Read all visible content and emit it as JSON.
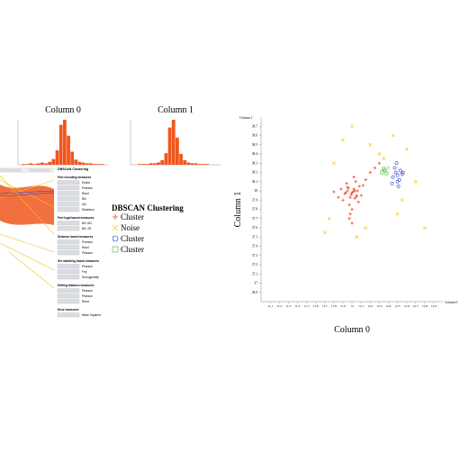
{
  "histograms": [
    {
      "title": "Column 0",
      "color": "#f0561e",
      "values": [
        0,
        1,
        1,
        2,
        1,
        2,
        3,
        2,
        4,
        8,
        20,
        55,
        62,
        40,
        18,
        7,
        4,
        3,
        2,
        2,
        1,
        1,
        1,
        0
      ]
    },
    {
      "title": "Column 1",
      "color": "#f0561e",
      "values": [
        0,
        0,
        1,
        1,
        1,
        2,
        2,
        3,
        6,
        15,
        48,
        58,
        35,
        14,
        6,
        3,
        2,
        2,
        1,
        1,
        1,
        0,
        0,
        0
      ]
    }
  ],
  "panel": {
    "title": "DBSCAN Clustering",
    "sections": [
      {
        "title": "Port encoding measures",
        "items": [
          "Euclid",
          "Pearson",
          "Rand",
          "BIC",
          "AIC",
          "Distortion"
        ]
      },
      {
        "title": "Port legal based measures",
        "items": [
          "BIC AIC",
          "BIC 2D"
        ]
      },
      {
        "title": "Distance based measures",
        "items": [
          "Pearson",
          "Rand",
          "Pearson"
        ]
      },
      {
        "title": "Set matching based measures",
        "items": [
          "Pearson",
          "Fmj",
          "Homogeneity"
        ]
      },
      {
        "title": "Editing distance measures",
        "items": [
          "Pearson",
          "Pearson",
          "Rand"
        ]
      },
      {
        "title": "Error measures",
        "items": [
          "Mean Squared"
        ]
      }
    ]
  },
  "legend": {
    "title": "DBSCAN Clustering"
  },
  "chart_data": {
    "type": "scatter",
    "xlabel": "Column 0",
    "ylabel": "Column 1",
    "x_corner_label": "Column 0",
    "y_corner_label": "Column 1",
    "xlim": [
      11,
      13
    ],
    "ylim": [
      36.8,
      38.8
    ],
    "xticks": [
      11.1,
      11.2,
      11.3,
      11.4,
      11.5,
      11.6,
      11.7,
      11.8,
      11.9,
      12,
      12.1,
      12.2,
      12.3,
      12.4,
      12.5,
      12.6,
      12.7,
      12.8,
      12.9
    ],
    "yticks": [
      36.9,
      37,
      37.1,
      37.2,
      37.3,
      37.4,
      37.5,
      37.6,
      37.7,
      37.8,
      37.9,
      38,
      38.1,
      38.2,
      38.3,
      38.4,
      38.5,
      38.6,
      38.7
    ],
    "series": [
      {
        "name": "Cluster",
        "color": "#f0461e",
        "marker": "plus",
        "x": [
          11.92,
          11.95,
          11.98,
          12.0,
          12.02,
          12.05,
          12.08,
          11.9,
          11.94,
          11.97,
          12.01,
          12.04,
          12.07,
          11.96,
          11.99,
          12.03,
          12.06,
          11.93,
          12.0,
          12.1,
          11.88,
          12.12,
          11.85,
          12.15,
          11.98,
          12.02,
          12.2,
          11.8,
          12.25,
          12.3,
          11.97,
          12.0,
          12.03,
          11.95,
          12.05
        ],
        "values": [
          37.97,
          38.0,
          37.93,
          37.98,
          38.02,
          37.95,
          38.05,
          37.9,
          38.08,
          37.85,
          37.99,
          38.1,
          37.88,
          38.03,
          37.96,
          37.92,
          38.0,
          37.98,
          37.8,
          37.95,
          38.02,
          38.06,
          37.93,
          38.12,
          37.75,
          38.15,
          38.2,
          37.99,
          38.25,
          38.3,
          37.7,
          37.65,
          38.0,
          38.04,
          37.94
        ]
      },
      {
        "name": "Noise",
        "color": "#f5c518",
        "marker": "cross",
        "x": [
          11.8,
          11.75,
          12.2,
          12.3,
          12.45,
          12.6,
          12.7,
          11.9,
          12.15,
          12.5,
          11.7,
          12.35,
          12.55,
          12.05,
          12.8,
          12.0,
          12.4
        ],
        "values": [
          38.3,
          37.7,
          38.5,
          38.4,
          38.6,
          38.45,
          38.1,
          38.55,
          37.6,
          37.75,
          37.55,
          38.35,
          37.9,
          37.5,
          37.6,
          38.7,
          38.25
        ]
      },
      {
        "name": "Cluster",
        "color": "#2b3fc4",
        "marker": "circle",
        "x": [
          12.45,
          12.48,
          12.5,
          12.52,
          12.55,
          12.47,
          12.53,
          12.5,
          12.44,
          12.56,
          12.49,
          12.51
        ],
        "values": [
          38.15,
          38.2,
          38.17,
          38.12,
          38.18,
          38.25,
          38.22,
          38.1,
          38.08,
          38.2,
          38.3,
          38.05
        ]
      },
      {
        "name": "Cluster",
        "color": "#3cb83c",
        "marker": "square",
        "x": [
          12.33,
          12.36,
          12.38,
          12.35
        ],
        "values": [
          38.2,
          38.22,
          38.19,
          38.24
        ]
      }
    ]
  }
}
